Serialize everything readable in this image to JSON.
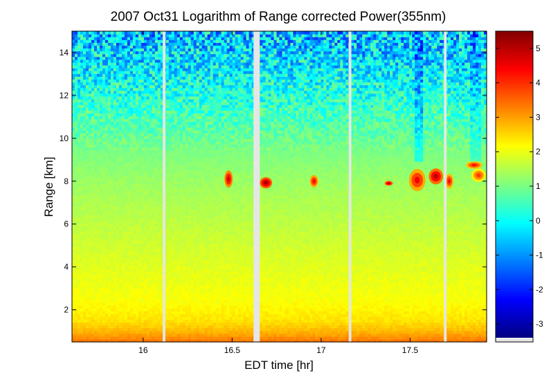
{
  "chart_data": {
    "type": "heatmap",
    "title": "2007 Oct31  Logarithm of Range corrected Power(355nm)",
    "xlabel": "EDT time [hr]",
    "ylabel": "Range [km]",
    "xlim": [
      15.6,
      17.93
    ],
    "ylim": [
      0.5,
      15.0
    ],
    "x_ticks": [
      16,
      16.5,
      17,
      17.5
    ],
    "x_tick_labels": [
      "16",
      "16.5",
      "17",
      "17.5"
    ],
    "y_ticks": [
      2,
      4,
      6,
      8,
      10,
      12,
      14
    ],
    "y_tick_labels": [
      "2",
      "4",
      "6",
      "8",
      "10",
      "12",
      "14"
    ],
    "colorbar": {
      "colormap": "jet",
      "range": [
        -3.4,
        5.5
      ],
      "ticks": [
        -3,
        -2,
        -1,
        0,
        1,
        2,
        3,
        4,
        5
      ],
      "tick_labels": [
        "-3",
        "-2",
        "-1",
        "0",
        "1",
        "2",
        "3",
        "4",
        "5"
      ],
      "missing_color": "#e6e6e6"
    },
    "data_gaps_hr": [
      [
        16.11,
        16.125
      ],
      [
        16.62,
        16.655
      ],
      [
        17.155,
        17.17
      ],
      [
        17.69,
        17.705
      ]
    ],
    "profile_log_power": [
      {
        "range_km": 0.5,
        "value": 3.4
      },
      {
        "range_km": 1.0,
        "value": 2.8
      },
      {
        "range_km": 1.5,
        "value": 2.4
      },
      {
        "range_km": 2.5,
        "value": 2.1
      },
      {
        "range_km": 4.0,
        "value": 1.9
      },
      {
        "range_km": 6.0,
        "value": 1.6
      },
      {
        "range_km": 8.0,
        "value": 1.3
      },
      {
        "range_km": 9.5,
        "value": 1.0
      },
      {
        "range_km": 10.5,
        "value": 0.7
      },
      {
        "range_km": 11.5,
        "value": 0.4
      },
      {
        "range_km": 12.5,
        "value": 0.1
      },
      {
        "range_km": 13.5,
        "value": -0.3
      },
      {
        "range_km": 15.0,
        "value": -0.6
      }
    ],
    "cloud_features": [
      {
        "t0": 16.46,
        "t1": 16.5,
        "r0": 7.75,
        "r1": 8.45,
        "peak": 4.8
      },
      {
        "t0": 16.66,
        "t1": 16.72,
        "r0": 7.7,
        "r1": 8.15,
        "peak": 5.2
      },
      {
        "t0": 16.94,
        "t1": 16.98,
        "r0": 7.75,
        "r1": 8.25,
        "peak": 4.5
      },
      {
        "t0": 17.36,
        "t1": 17.4,
        "r0": 7.8,
        "r1": 8.0,
        "peak": 5.0
      },
      {
        "t0": 17.5,
        "t1": 17.58,
        "r0": 7.6,
        "r1": 8.5,
        "peak": 4.5
      },
      {
        "t0": 17.61,
        "t1": 17.68,
        "r0": 7.9,
        "r1": 8.55,
        "peak": 5.0
      },
      {
        "t0": 17.7,
        "t1": 17.74,
        "r0": 7.7,
        "r1": 8.3,
        "peak": 4.4
      },
      {
        "t0": 17.82,
        "t1": 17.9,
        "r0": 8.6,
        "r1": 8.9,
        "peak": 4.3
      },
      {
        "t0": 17.85,
        "t1": 17.92,
        "r0": 8.0,
        "r1": 8.55,
        "peak": 3.9
      }
    ],
    "legend": "colorbar-right",
    "grid": false
  }
}
